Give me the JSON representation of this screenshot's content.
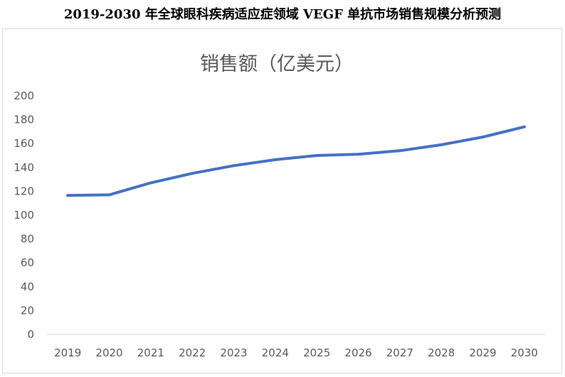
{
  "page": {
    "title": "2019-2030 年全球眼科疾病适应症领域 VEGF 单抗市场销售规模分析预测"
  },
  "chart_data": {
    "type": "line",
    "title": "销售额（亿美元）",
    "xlabel": "",
    "ylabel": "",
    "categories": [
      "2019",
      "2020",
      "2021",
      "2022",
      "2023",
      "2024",
      "2025",
      "2026",
      "2027",
      "2028",
      "2029",
      "2030"
    ],
    "series": [
      {
        "values": [
          116.5,
          117,
          127,
          135,
          141.5,
          146.5,
          150,
          151,
          154,
          159,
          165.5,
          174
        ]
      }
    ],
    "ylim": [
      0,
      200
    ],
    "yticks": [
      0,
      20,
      40,
      60,
      80,
      100,
      120,
      140,
      160,
      180,
      200
    ],
    "grid": false,
    "line_color": "#4472c4"
  }
}
